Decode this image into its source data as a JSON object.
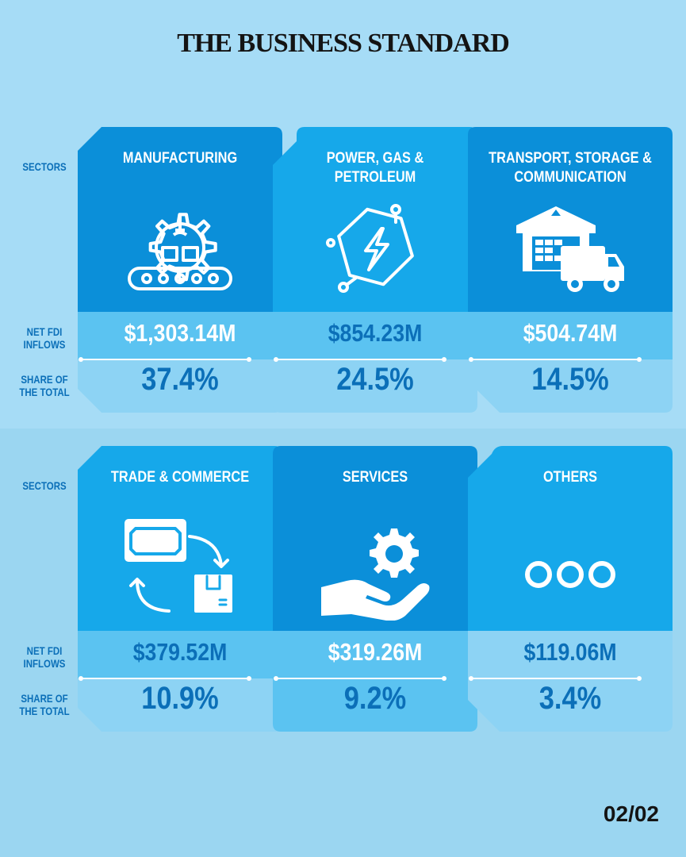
{
  "masthead": "THE BUSINESS STANDARD",
  "row_labels": {
    "sectors": "SECTORS",
    "net_fdi": "NET FDI\nINFLOWS",
    "share": "SHARE OF\nTHE TOTAL"
  },
  "sectors": [
    {
      "name": "MANUFACTURING",
      "net_fdi_inflows": "$1,303.14M",
      "share_of_total": "37.4%",
      "share_pct": 37.4,
      "icon": "factory-gear-icon"
    },
    {
      "name": "POWER, GAS &\nPETROLEUM",
      "net_fdi_inflows": "$854.23M",
      "share_of_total": "24.5%",
      "share_pct": 24.5,
      "icon": "power-bolt-icon"
    },
    {
      "name": "TRANSPORT, STORAGE &\nCOMMUNICATION",
      "net_fdi_inflows": "$504.74M",
      "share_of_total": "14.5%",
      "share_pct": 14.5,
      "icon": "warehouse-truck-icon"
    },
    {
      "name": "TRADE & COMMERCE",
      "net_fdi_inflows": "$379.52M",
      "share_of_total": "10.9%",
      "share_pct": 10.9,
      "icon": "money-exchange-icon"
    },
    {
      "name": "SERVICES",
      "net_fdi_inflows": "$319.26M",
      "share_of_total": "9.2%",
      "share_pct": 9.2,
      "icon": "hand-gear-icon"
    },
    {
      "name": "OTHERS",
      "net_fdi_inflows": "$119.06M",
      "share_of_total": "3.4%",
      "share_pct": 3.4,
      "icon": "three-circles-icon"
    }
  ],
  "page_indicator": "02/02",
  "colors": {
    "background": "#a6dcf6",
    "card_dark": "#0b8fd9",
    "card_light": "#16a8ea",
    "band_mid": "#5bc3f1",
    "band_low": "#8dd3f4",
    "text_accent": "#0b6fb8"
  }
}
